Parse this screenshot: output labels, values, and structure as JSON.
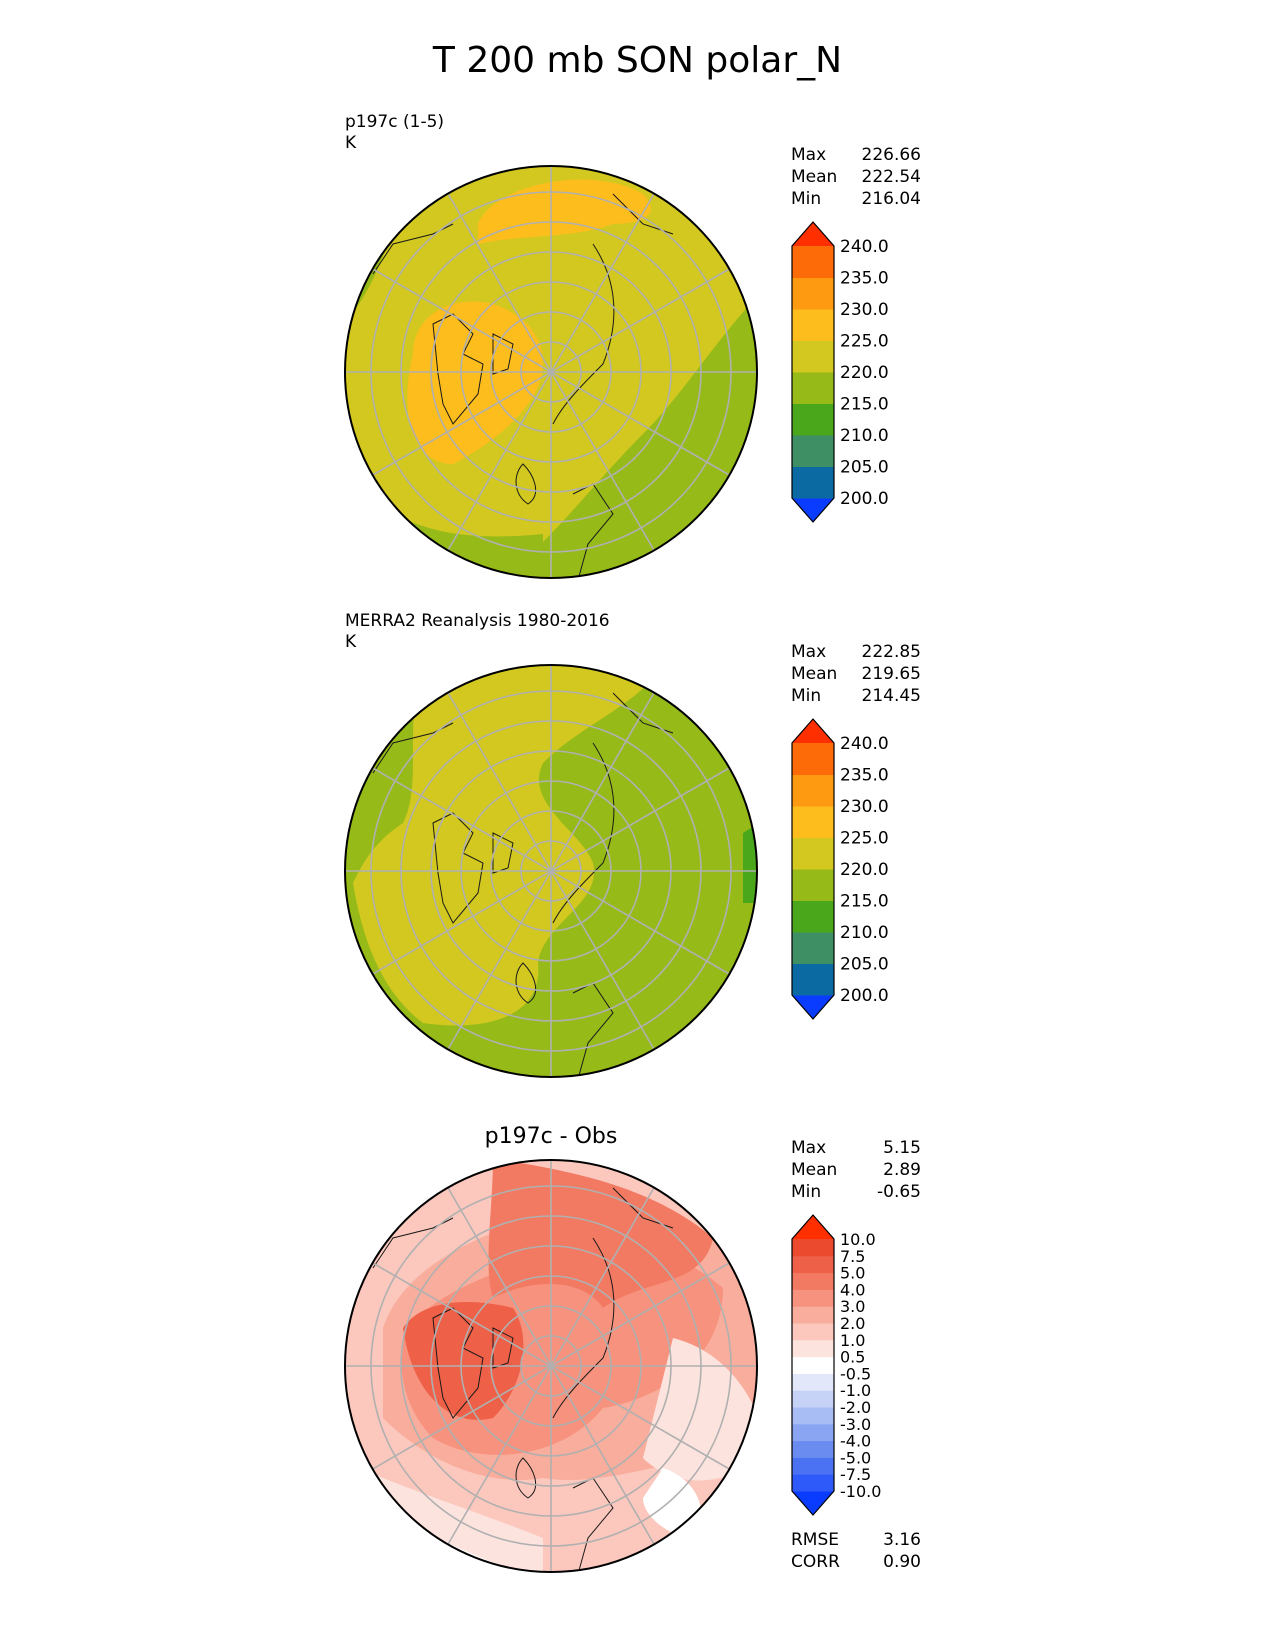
{
  "title": "T 200 mb SON polar_N",
  "panels": [
    {
      "label_lines": [
        "p197c (1-5)",
        "K"
      ],
      "stats": [
        {
          "label": "Max",
          "value": "226.66"
        },
        {
          "label": "Mean",
          "value": "222.54"
        },
        {
          "label": "Min",
          "value": "216.04"
        }
      ],
      "colorbar": {
        "colors": [
          "#0a3cff",
          "#0c6aa3",
          "#3e8f63",
          "#4aa61a",
          "#96ba18",
          "#d2c81f",
          "#fdbd1d",
          "#fd9a12",
          "#fd6a08",
          "#ff2f00"
        ],
        "ticks": [
          "200.0",
          "205.0",
          "210.0",
          "215.0",
          "220.0",
          "225.0",
          "230.0",
          "235.0",
          "240.0"
        ]
      }
    },
    {
      "label_lines": [
        "MERRA2 Reanalysis 1980-2016",
        "K"
      ],
      "stats": [
        {
          "label": "Max",
          "value": "222.85"
        },
        {
          "label": "Mean",
          "value": "219.65"
        },
        {
          "label": "Min",
          "value": "214.45"
        }
      ],
      "colorbar": {
        "colors": [
          "#0a3cff",
          "#0c6aa3",
          "#3e8f63",
          "#4aa61a",
          "#96ba18",
          "#d2c81f",
          "#fdbd1d",
          "#fd9a12",
          "#fd6a08",
          "#ff2f00"
        ],
        "ticks": [
          "200.0",
          "205.0",
          "210.0",
          "215.0",
          "220.0",
          "225.0",
          "230.0",
          "235.0",
          "240.0"
        ]
      }
    },
    {
      "title": "p197c - Obs",
      "stats": [
        {
          "label": "Max",
          "value": "5.15"
        },
        {
          "label": "Mean",
          "value": "2.89"
        },
        {
          "label": "Min",
          "value": "-0.65"
        }
      ],
      "metrics": [
        {
          "label": "RMSE",
          "value": "3.16"
        },
        {
          "label": "CORR",
          "value": "0.90"
        }
      ],
      "colorbar": {
        "colors": [
          "#0a3cff",
          "#2d5af8",
          "#4a72f2",
          "#6a8cf0",
          "#8aa6f2",
          "#a8bdf4",
          "#c6d2f6",
          "#e2e8fa",
          "#ffffff",
          "#fde3de",
          "#fcc8bd",
          "#f9ad9c",
          "#f6927d",
          "#f27a62",
          "#ee6047",
          "#ec4a2f",
          "#ff2f00"
        ],
        "ticks": [
          "-10.0",
          "-7.5",
          "-5.0",
          "-4.0",
          "-3.0",
          "-2.0",
          "-1.0",
          "-0.5",
          "0.5",
          "1.0",
          "2.0",
          "3.0",
          "4.0",
          "5.0",
          "7.5",
          "10.0"
        ]
      }
    }
  ],
  "chart_data": [
    {
      "type": "heatmap",
      "title": "p197c (1-5)",
      "units": "K",
      "projection": "north polar stereographic",
      "field_description": "200 mb temperature, SON mean",
      "levels": [
        200,
        205,
        210,
        215,
        220,
        225,
        230,
        235,
        240
      ],
      "max": 226.66,
      "mean": 222.54,
      "min": 216.04
    },
    {
      "type": "heatmap",
      "title": "MERRA2 Reanalysis 1980-2016",
      "units": "K",
      "projection": "north polar stereographic",
      "levels": [
        200,
        205,
        210,
        215,
        220,
        225,
        230,
        235,
        240
      ],
      "max": 222.85,
      "mean": 219.65,
      "min": 214.45
    },
    {
      "type": "heatmap",
      "title": "p197c - Obs",
      "projection": "north polar stereographic",
      "levels": [
        -10,
        -7.5,
        -5,
        -4,
        -3,
        -2,
        -1,
        -0.5,
        0.5,
        1,
        2,
        3,
        4,
        5,
        7.5,
        10
      ],
      "max": 5.15,
      "mean": 2.89,
      "min": -0.65,
      "rmse": 3.16,
      "corr": 0.9
    }
  ]
}
